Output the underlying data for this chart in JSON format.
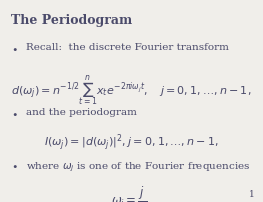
{
  "title": "The Periodogram",
  "background_color": "#f0eeea",
  "text_color": "#4a4a6a",
  "bullet1_text": "Recall:  the discrete Fourier transform",
  "bullet2_text": "and the periodogram",
  "bullet3_text": "where $\\omega_j$ is one of the Fourier frequencies",
  "page_number": "1",
  "title_fontsize": 9,
  "body_fontsize": 7.5,
  "eq_fontsize": 8,
  "small_fontsize": 6.5
}
